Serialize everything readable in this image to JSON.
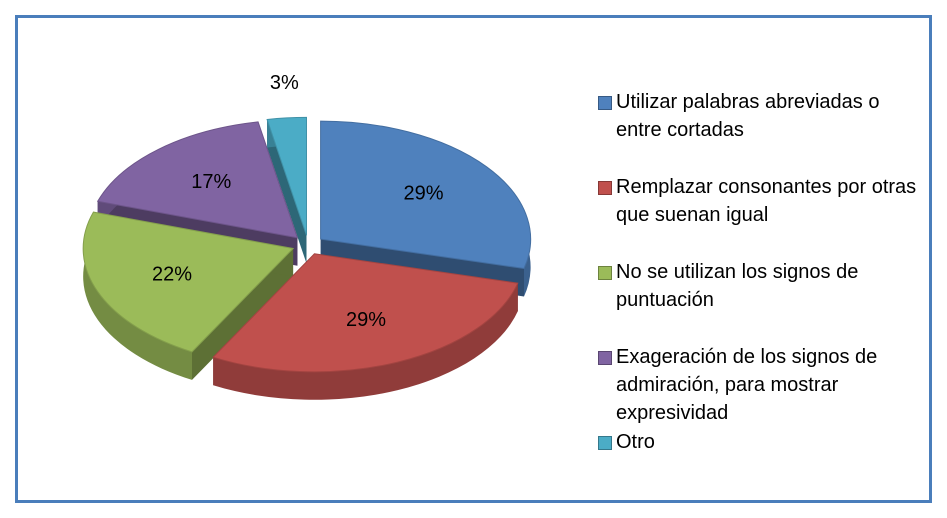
{
  "chart_data": {
    "type": "pie",
    "categories": [
      "Utilizar palabras abreviadas o entre cortadas",
      "Remplazar consonantes por otras que suenan igual",
      "No se utilizan los signos de puntuación",
      "Exageración de los signos de admiración, para mostrar expresividad",
      "Otro"
    ],
    "values": [
      29,
      29,
      22,
      17,
      3
    ],
    "value_labels": [
      "29%",
      "29%",
      "22%",
      "17%",
      "3%"
    ],
    "colors": [
      "#4f81bd",
      "#c0504d",
      "#9bbb59",
      "#8064a2",
      "#4bacc6"
    ]
  }
}
